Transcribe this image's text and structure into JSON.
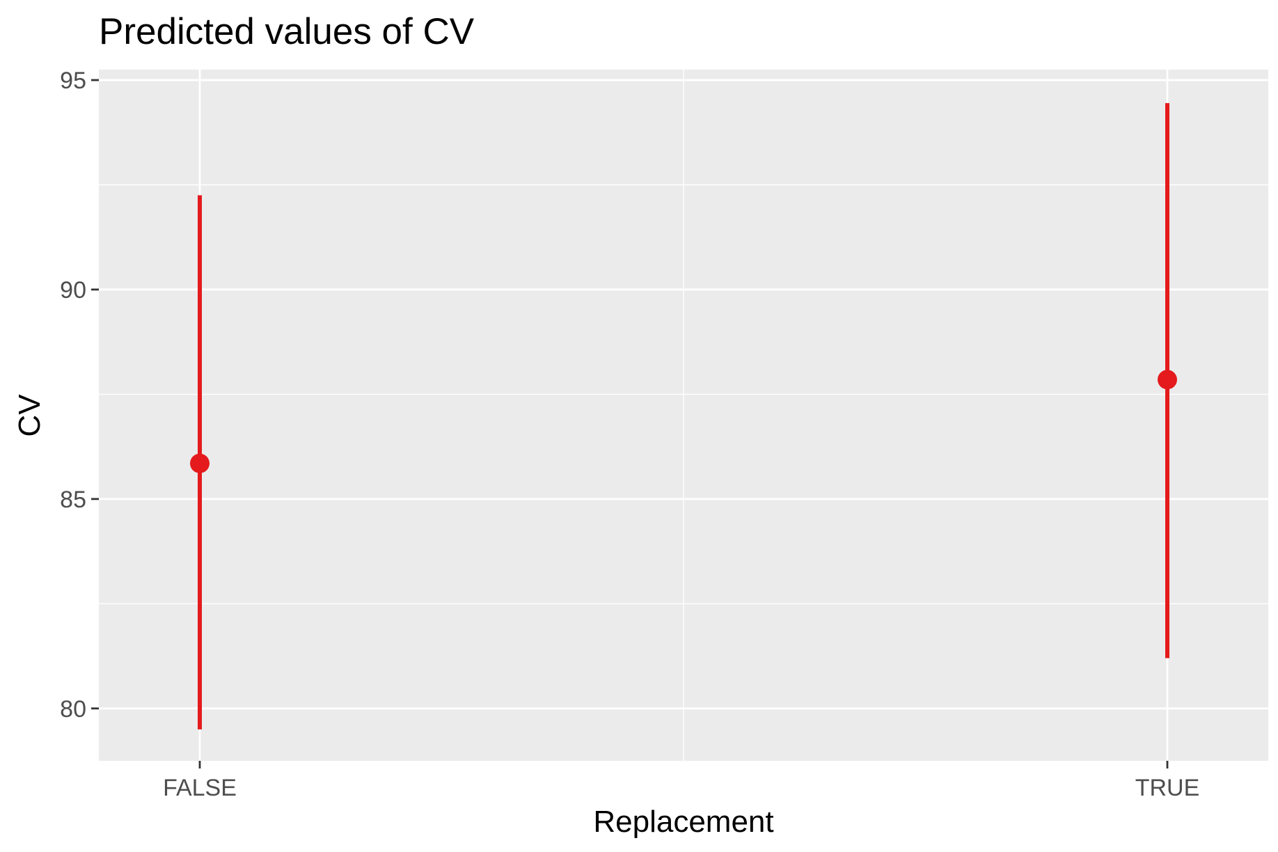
{
  "chart_data": {
    "type": "scatter",
    "title": "Predicted values of CV",
    "xlabel": "Replacement",
    "ylabel": "CV",
    "categories": [
      "FALSE",
      "TRUE"
    ],
    "series": [
      {
        "points": [
          {
            "x": "FALSE",
            "y": 85.85,
            "ci_low": 79.5,
            "ci_high": 92.25
          },
          {
            "x": "TRUE",
            "y": 87.85,
            "ci_low": 81.2,
            "ci_high": 94.45
          }
        ]
      }
    ],
    "ylim": [
      78.75,
      95.25
    ],
    "yticks": [
      80,
      85,
      90,
      95
    ],
    "yticks_labels": [
      "80",
      "85",
      "90",
      "95"
    ],
    "grid": true,
    "legend": "none",
    "colors": {
      "panel_background": "#ebebeb",
      "grid_line": "#ffffff",
      "series": "#e41a1c",
      "tick_mark": "#333333"
    }
  }
}
